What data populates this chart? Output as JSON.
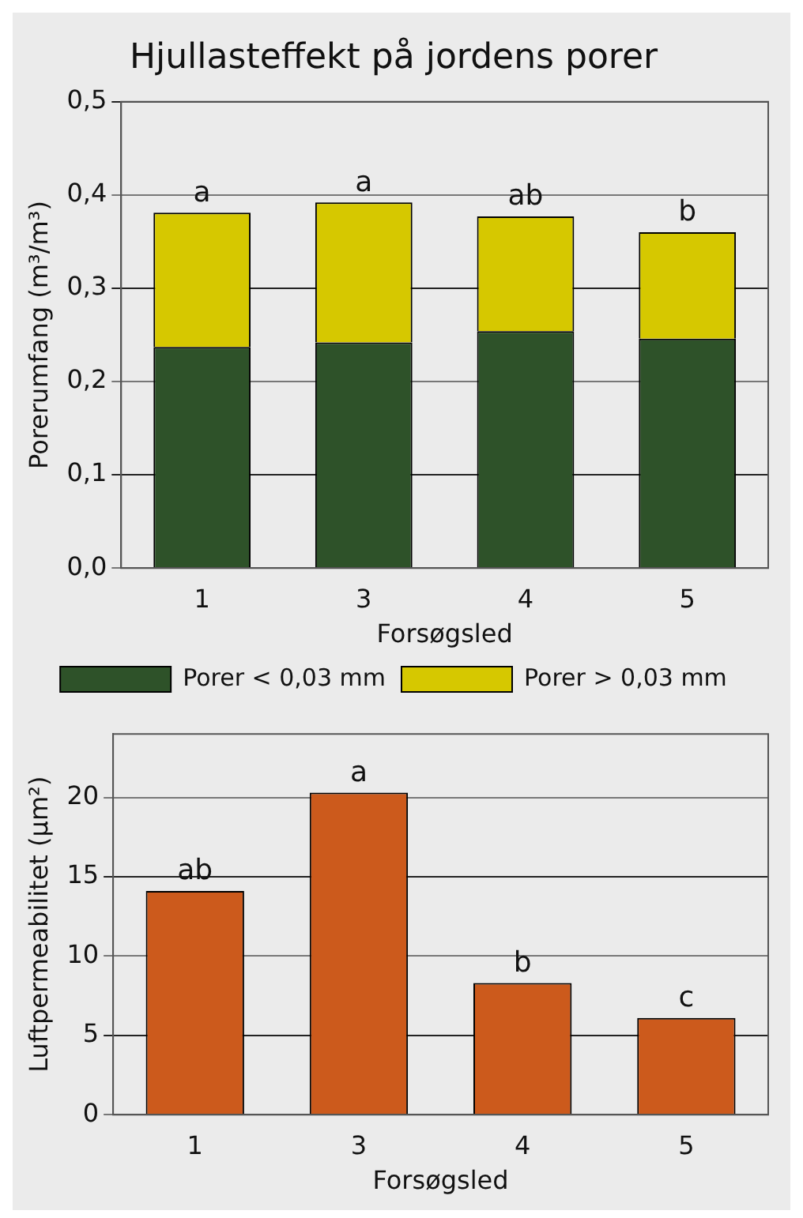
{
  "chart_data": [
    {
      "type": "bar",
      "title": "Hjullasteffekt på jordens porer",
      "xlabel": "Forsøgsled",
      "ylabel": "Porerumfang (m³/m³)",
      "categories": [
        "1",
        "3",
        "4",
        "5"
      ],
      "stacked": true,
      "series": [
        {
          "name": "Porer < 0,03 mm",
          "color": "#2e5229",
          "values": [
            0.237,
            0.242,
            0.254,
            0.246
          ]
        },
        {
          "name": "Porer > 0,03 mm",
          "color": "#d6c800",
          "values": [
            0.144,
            0.15,
            0.123,
            0.114
          ]
        }
      ],
      "ylim": [
        0,
        0.5
      ],
      "yticks": [
        {
          "value": 0,
          "label": "0,0"
        },
        {
          "value": 0.1,
          "label": "0,1"
        },
        {
          "value": 0.2,
          "label": "0,2"
        },
        {
          "value": 0.3,
          "label": "0,3"
        },
        {
          "value": 0.4,
          "label": "0,4"
        },
        {
          "value": 0.5,
          "label": "0,5"
        }
      ],
      "grid": "y",
      "legend": "bottom",
      "annotations": [
        {
          "text": "a",
          "x": "1",
          "y": 0.381
        },
        {
          "text": "a",
          "x": "3",
          "y": 0.392
        },
        {
          "text": "ab",
          "x": "4",
          "y": 0.377
        },
        {
          "text": "b",
          "x": "5",
          "y": 0.36
        }
      ]
    },
    {
      "type": "bar",
      "xlabel": "Forsøgsled",
      "ylabel": "Luftpermeabilitet (µm²)",
      "categories": [
        "1",
        "3",
        "4",
        "5"
      ],
      "values": [
        14.1,
        20.3,
        8.3,
        6.1
      ],
      "color": "#cc5a1c",
      "ylim": [
        0,
        24
      ],
      "yticks": [
        0,
        5,
        10,
        15,
        20
      ],
      "grid": "y",
      "annotations": [
        {
          "text": "ab",
          "x": "1",
          "y": 14.1
        },
        {
          "text": "a",
          "x": "3",
          "y": 20.3
        },
        {
          "text": "b",
          "x": "4",
          "y": 8.3
        },
        {
          "text": "c",
          "x": "5",
          "y": 6.1
        }
      ]
    }
  ]
}
